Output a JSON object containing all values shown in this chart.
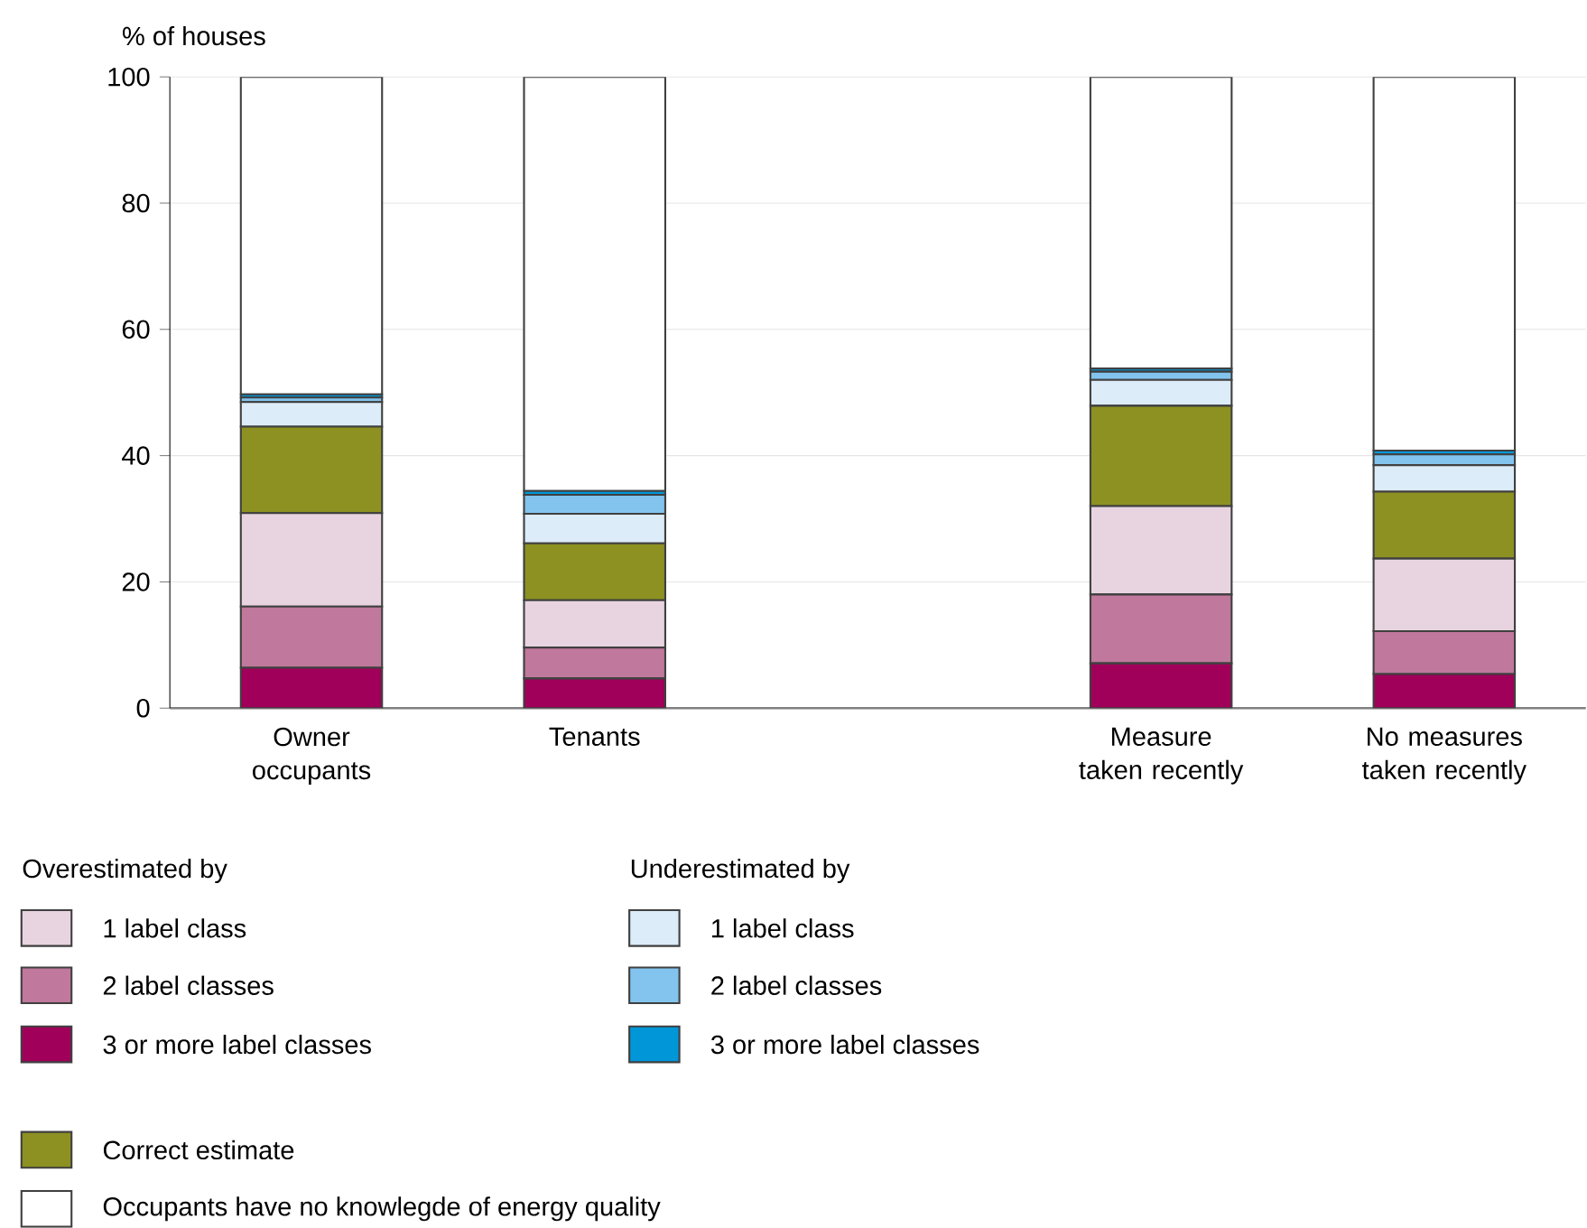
{
  "chart_data": {
    "type": "bar",
    "stacked": true,
    "ylabel": "% of houses",
    "categories": [
      "Owner occupants",
      "Tenants",
      null,
      "Measure taken recently",
      "No measures taken recently"
    ],
    "series": [
      {
        "name": "3 or more label classes",
        "color": "#a0005a",
        "values": [
          6.4,
          4.7,
          null,
          7.1,
          5.4
        ]
      },
      {
        "name": "2 label classes",
        "color": "#c0789c",
        "values": [
          9.7,
          4.9,
          null,
          10.9,
          6.8
        ]
      },
      {
        "name": "1 label class",
        "color": "#e8d4e0",
        "values": [
          14.8,
          7.5,
          null,
          14.0,
          11.5
        ]
      },
      {
        "name": "Correct estimate",
        "color": "#8c9122",
        "values": [
          13.7,
          9.0,
          null,
          15.9,
          10.6
        ]
      },
      {
        "name": "1 label class",
        "color": "#dcecf8",
        "values": [
          3.9,
          4.7,
          null,
          4.1,
          4.2
        ]
      },
      {
        "name": "2 label classes",
        "color": "#82c4ee",
        "values": [
          0.7,
          3.0,
          null,
          1.3,
          1.7
        ]
      },
      {
        "name": "3 or more label classes",
        "color": "#0096d8",
        "values": [
          0.5,
          0.6,
          null,
          0.5,
          0.6
        ]
      },
      {
        "name": "Occupants have no knowlegde of energy quality",
        "color": "#ffffff",
        "values": [
          50.3,
          65.6,
          null,
          46.2,
          59.2
        ]
      }
    ],
    "annotations": [
      "Overestimated by",
      "Underestimated by"
    ],
    "ylim": [
      0,
      100
    ],
    "yticks": [
      0,
      20,
      40,
      60,
      80,
      100
    ],
    "grid": "y",
    "legend": "bottom"
  }
}
